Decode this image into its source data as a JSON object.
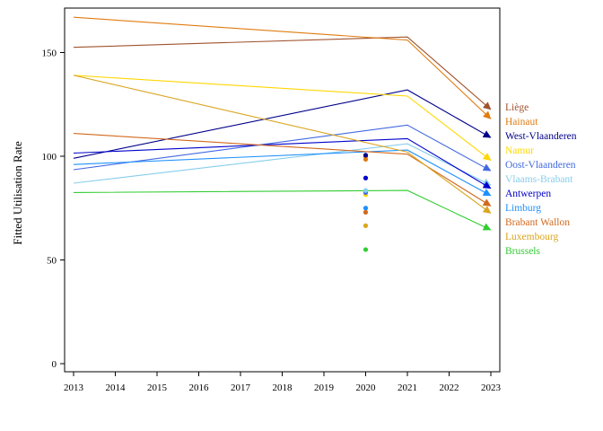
{
  "chart_data": {
    "type": "line",
    "title": "",
    "xlabel": "",
    "ylabel": "Fitted Utilisation Rate",
    "xlim": [
      2013,
      2023
    ],
    "ylim": [
      -3,
      172
    ],
    "x_ticks": [
      2013,
      2014,
      2015,
      2016,
      2017,
      2018,
      2019,
      2020,
      2021,
      2022,
      2023
    ],
    "y_ticks": [
      0,
      50,
      100,
      150
    ],
    "grid": false,
    "legend_placement": "right",
    "series": [
      {
        "name": "Liège",
        "color": "#a0522d",
        "x": [
          2013,
          2021,
          2023
        ],
        "values": [
          152.5,
          157.5,
          122.5
        ],
        "point_2020": 100
      },
      {
        "name": "Hainaut",
        "color": "#e07b10",
        "x": [
          2013,
          2021,
          2023
        ],
        "values": [
          167,
          156,
          118
        ],
        "point_2020": 98.5
      },
      {
        "name": "West-Vlaanderen",
        "color": "#00008b",
        "x": [
          2013,
          2021,
          2023
        ],
        "values": [
          99,
          132,
          109
        ],
        "point_2020": 100.5
      },
      {
        "name": "Namur",
        "color": "#ffd700",
        "x": [
          2013,
          2021,
          2023
        ],
        "values": [
          139,
          129,
          98
        ],
        "point_2020": 81.5
      },
      {
        "name": "Oost-Vlaanderen",
        "color": "#4169e1",
        "x": [
          2013,
          2021,
          2023
        ],
        "values": [
          93.5,
          115,
          93
        ],
        "point_2020": 82.5
      },
      {
        "name": "Vlaams-Brabant",
        "color": "#87ceeb",
        "x": [
          2013,
          2021,
          2023
        ],
        "values": [
          87,
          106,
          86
        ],
        "point_2020": 83.5
      },
      {
        "name": "Antwerpen",
        "color": "#0000cd",
        "x": [
          2013,
          2021,
          2023
        ],
        "values": [
          101.5,
          108.5,
          84.5
        ],
        "point_2020": 89.5
      },
      {
        "name": "Limburg",
        "color": "#1e90ff",
        "x": [
          2013,
          2021,
          2023
        ],
        "values": [
          96,
          103,
          81
        ],
        "point_2020": 75
      },
      {
        "name": "Brabant Wallon",
        "color": "#d2691e",
        "x": [
          2013,
          2021,
          2023
        ],
        "values": [
          111,
          101,
          76
        ],
        "point_2020": 73
      },
      {
        "name": "Luxembourg",
        "color": "#daa520",
        "x": [
          2013,
          2021,
          2023
        ],
        "values": [
          139,
          102,
          72.5
        ],
        "point_2020": 66.5
      },
      {
        "name": "Brussels",
        "color": "#32cd32",
        "x": [
          2013,
          2021,
          2023
        ],
        "values": [
          82.5,
          83.5,
          64.5
        ],
        "point_2020": 55
      }
    ]
  }
}
